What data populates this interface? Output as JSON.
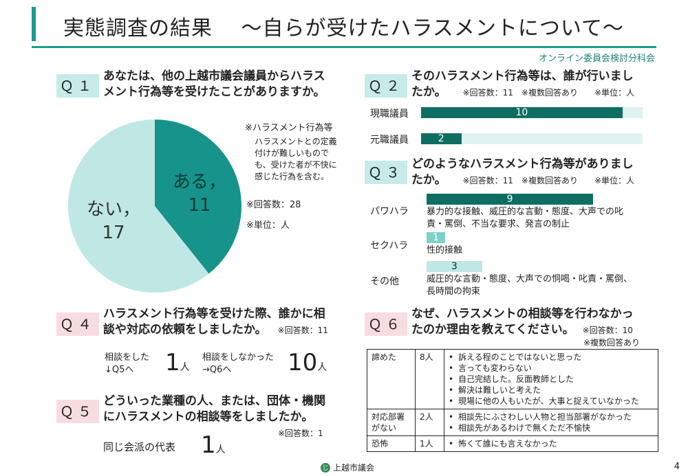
{
  "header": {
    "title": "実態調査の結果　 ～自らが受けたハラスメントについて～",
    "organization": "オンライン委員会検討分科会"
  },
  "q1": {
    "label": "Ｑ１",
    "question_line1": "あなたは、他の上越市議会議員からハラス",
    "question_line2": "メント行為等を受けたことがありますか。",
    "footnote_title": "※ハラスメント行為等",
    "footnote_body": "ハラスメントとの定義付けが難しいものでも、受けた者が不快に感じた行為を含む。",
    "responses": "※回答数：28",
    "unit": "※単位：人",
    "yes_label": "ある，",
    "yes_value": "11",
    "no_label": "ない，",
    "no_value": "17"
  },
  "chart_data": [
    {
      "type": "pie",
      "labels": [
        "ある",
        "ない"
      ],
      "values": [
        11,
        17
      ],
      "colors": [
        "#16938a",
        "#bfe8e4"
      ]
    },
    {
      "type": "bar",
      "categories": [
        "現職議員",
        "元職議員"
      ],
      "values": [
        10,
        2
      ],
      "xlim": [
        0,
        11
      ]
    },
    {
      "type": "bar",
      "categories": [
        "パワハラ",
        "セクハラ",
        "その他"
      ],
      "values": [
        9,
        1,
        3
      ],
      "xlim": [
        0,
        11
      ]
    }
  ],
  "q2": {
    "label": "Ｑ２",
    "question_line1": "そのハラスメント行為等は、誰が行いまし",
    "question_line2": "たか。",
    "note": "※回答数：11　※複数回答あり　　※単位：人",
    "bars": [
      {
        "label": "現職議員",
        "value_text": "10"
      },
      {
        "label": "元職議員",
        "value_text": "2"
      }
    ]
  },
  "q3": {
    "label": "Ｑ３",
    "question_line1": "どのようなハラスメント行為等がありまし",
    "question_line2": "たか。",
    "note": "※回答数：11　※複数回答あり　　※単位：人",
    "bars": [
      {
        "label": "パワハラ",
        "value_text": "9",
        "desc": "暴力的な接触、威圧的な言動・態度、大声での叱責・罵倒、不当な要求、発言の制止"
      },
      {
        "label": "セクハラ",
        "value_text": "1",
        "desc": "性的接触"
      },
      {
        "label": "その他",
        "value_text": "3",
        "desc": "威圧的な言動・態度、大声での恫喝・叱責・罵倒、長時間の拘束"
      }
    ]
  },
  "q4": {
    "label": "Ｑ４",
    "question_line1": "ハラスメント行為等を受けた際、誰かに相",
    "question_line2": "談や対応の依頼をしましたか。",
    "note": "※回答数：11",
    "yes_text_line1": "相談をした",
    "yes_text_line2": "↓Q5へ",
    "yes_value": "1",
    "no_text_line1": "相談をしなかった",
    "no_text_line2": "→Q6へ",
    "no_value": "10",
    "unit": "人"
  },
  "q5": {
    "label": "Ｑ５",
    "question_line1": "どういった業種の人、または、団体・機関",
    "question_line2": "にハラスメントの相談等をしましたか。",
    "note": "※回答数：1",
    "answer": "同じ会派の代表",
    "value": "1",
    "unit": "人"
  },
  "q6": {
    "label": "Ｑ６",
    "question_line1": "なぜ、ハラスメントの相談等を行わなかっ",
    "question_line2": "たのか理由を教えてください。",
    "note": "※回答数：10",
    "note2": "※複数回答あり",
    "rows": [
      {
        "category": "諦めた",
        "count": "8人",
        "reasons": [
          "訴える程のことではないと思った",
          "言っても変わらない",
          "自己完結した。反面教師とした",
          "解決は難しいと考えた",
          "現場に他の人もいたが、大事と捉えていなかった"
        ]
      },
      {
        "category": "対応部署がない",
        "count": "2人",
        "reasons": [
          "相談先にふさわしい人物と担当部署がなかった",
          "相談先があるわけで無くただ不愉快"
        ]
      },
      {
        "category": "恐怖",
        "count": "1人",
        "reasons": [
          "怖くて誰にも言えなかった"
        ]
      }
    ]
  },
  "footer": {
    "org": "上越市議会",
    "logo_char": "じ",
    "page": "4"
  }
}
